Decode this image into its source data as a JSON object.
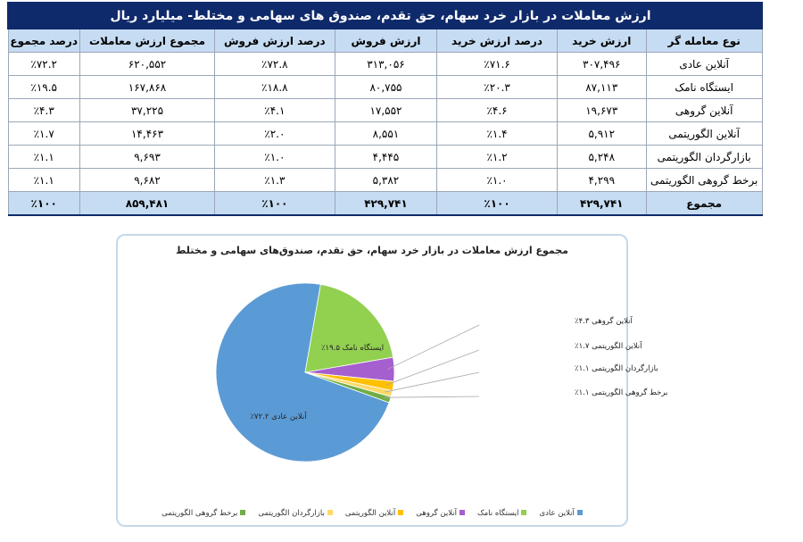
{
  "table": {
    "title": "ارزش معاملات در بازار خرد سهام، حق تقدم، صندوق های سهامی و مختلط- میلیارد ریال",
    "headers": [
      "نوع معامله گر",
      "ارزش خرید",
      "درصد ارزش خرید",
      "ارزش فروش",
      "درصد ارزش فروش",
      "مجموع ارزش معاملات",
      "درصد مجموع"
    ],
    "rows": [
      [
        "آنلاین عادی",
        "۳۰۷,۴۹۶",
        "٪۷۱.۶",
        "۳۱۳,۰۵۶",
        "٪۷۲.۸",
        "۶۲۰,۵۵۲",
        "٪۷۲.۲"
      ],
      [
        "ایستگاه نامک",
        "۸۷,۱۱۳",
        "٪۲۰.۳",
        "۸۰,۷۵۵",
        "٪۱۸.۸",
        "۱۶۷,۸۶۸",
        "٪۱۹.۵"
      ],
      [
        "آنلاین گروهی",
        "۱۹,۶۷۳",
        "٪۴.۶",
        "۱۷,۵۵۲",
        "٪۴.۱",
        "۳۷,۲۲۵",
        "٪۴.۳"
      ],
      [
        "آنلاین الگوریتمی",
        "۵,۹۱۲",
        "٪۱.۴",
        "۸,۵۵۱",
        "٪۲.۰",
        "۱۴,۴۶۳",
        "٪۱.۷"
      ],
      [
        "بازارگردان الگوریتمی",
        "۵,۲۴۸",
        "٪۱.۲",
        "۴,۴۴۵",
        "٪۱.۰",
        "۹,۶۹۳",
        "٪۱.۱"
      ],
      [
        "برخط گروهی الگوریتمی",
        "۴,۲۹۹",
        "٪۱.۰",
        "۵,۳۸۲",
        "٪۱.۳",
        "۹,۶۸۲",
        "٪۱.۱"
      ]
    ],
    "total": [
      "مجموع",
      "۴۲۹,۷۴۱",
      "٪۱۰۰",
      "۴۲۹,۷۴۱",
      "٪۱۰۰",
      "۸۵۹,۴۸۱",
      "٪۱۰۰"
    ]
  },
  "chart_data": {
    "type": "pie",
    "title": "مجموع ارزش معاملات در بازار خرد سهام، حق تقدم، صندوق‌های سهامی و مختلط",
    "categories": [
      "آنلاین عادی",
      "ایستگاه نامک",
      "آنلاین گروهی",
      "آنلاین الگوریتمی",
      "بازارگردان الگوریتمی",
      "برخط گروهی الگوریتمی"
    ],
    "values": [
      72.2,
      19.5,
      4.3,
      1.7,
      1.1,
      1.1
    ],
    "data_labels": [
      "آنلاین عادی ۷۲.۲٪",
      "ایستگاه نامک ۱۹.۵٪",
      "آنلاین گروهی ۴.۳٪",
      "آنلاین الگوریتمی ۱.۷٪",
      "بازارگردان الگوریتمی ۱.۱٪",
      "برخط گروهی الگوریتمی ۱.۱٪"
    ],
    "colors": [
      "#5b9bd5",
      "#92d050",
      "#a65fce",
      "#ffc000",
      "#ffd966",
      "#70ad47"
    ],
    "legend_position": "bottom"
  }
}
